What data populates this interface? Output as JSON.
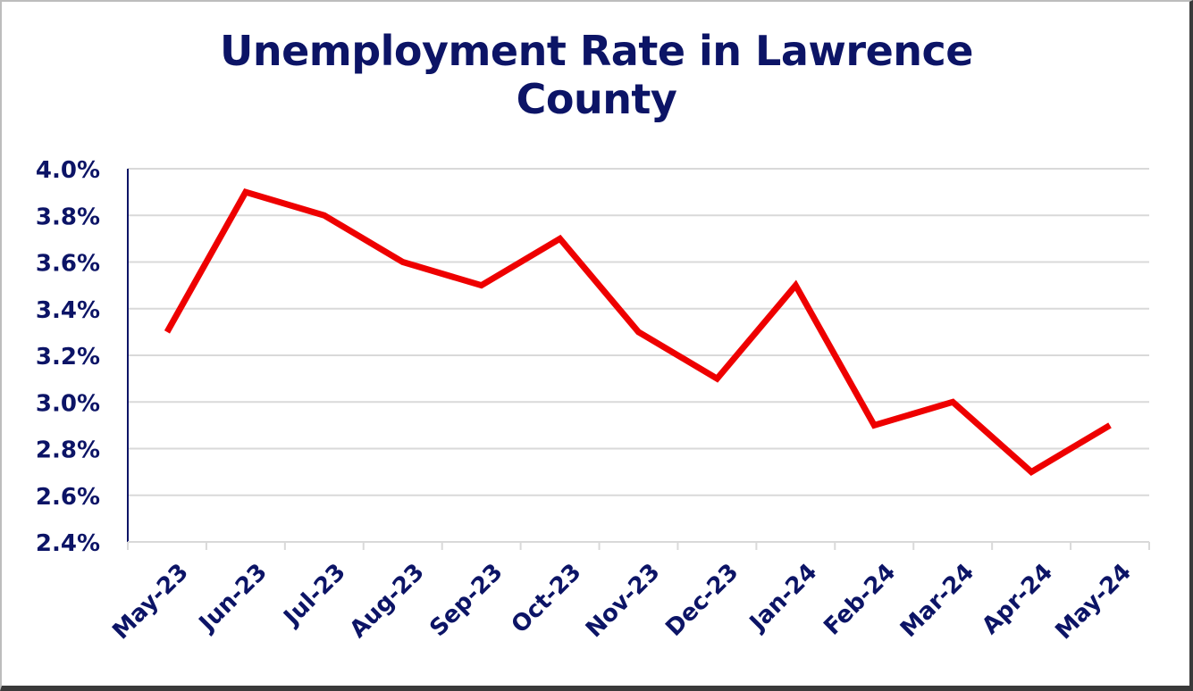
{
  "chart_data": {
    "type": "line",
    "title_lines": [
      "Unemployment Rate in Lawrence",
      "County"
    ],
    "xlabel": "",
    "ylabel": "",
    "categories": [
      "May-23",
      "Jun-23",
      "Jul-23",
      "Aug-23",
      "Sep-23",
      "Oct-23",
      "Nov-23",
      "Dec-23",
      "Jan-24",
      "Feb-24",
      "Mar-24",
      "Apr-24",
      "May-24"
    ],
    "series": [
      {
        "values": [
          3.3,
          3.9,
          3.8,
          3.6,
          3.5,
          3.7,
          3.3,
          3.1,
          3.5,
          2.9,
          3.0,
          2.7,
          2.9
        ],
        "color": "#ee0000"
      }
    ],
    "ylim": [
      2.4,
      4.0
    ],
    "y_ticks": [
      "2.4%",
      "2.6%",
      "2.8%",
      "3.0%",
      "3.2%",
      "3.4%",
      "3.6%",
      "3.8%",
      "4.0%"
    ],
    "grid": true,
    "legend": "none",
    "colors": {
      "title": "#0c1466",
      "axis_labels": "#0c1466",
      "gridlines": "#d9d9d9",
      "axis": "#0c1466"
    }
  }
}
